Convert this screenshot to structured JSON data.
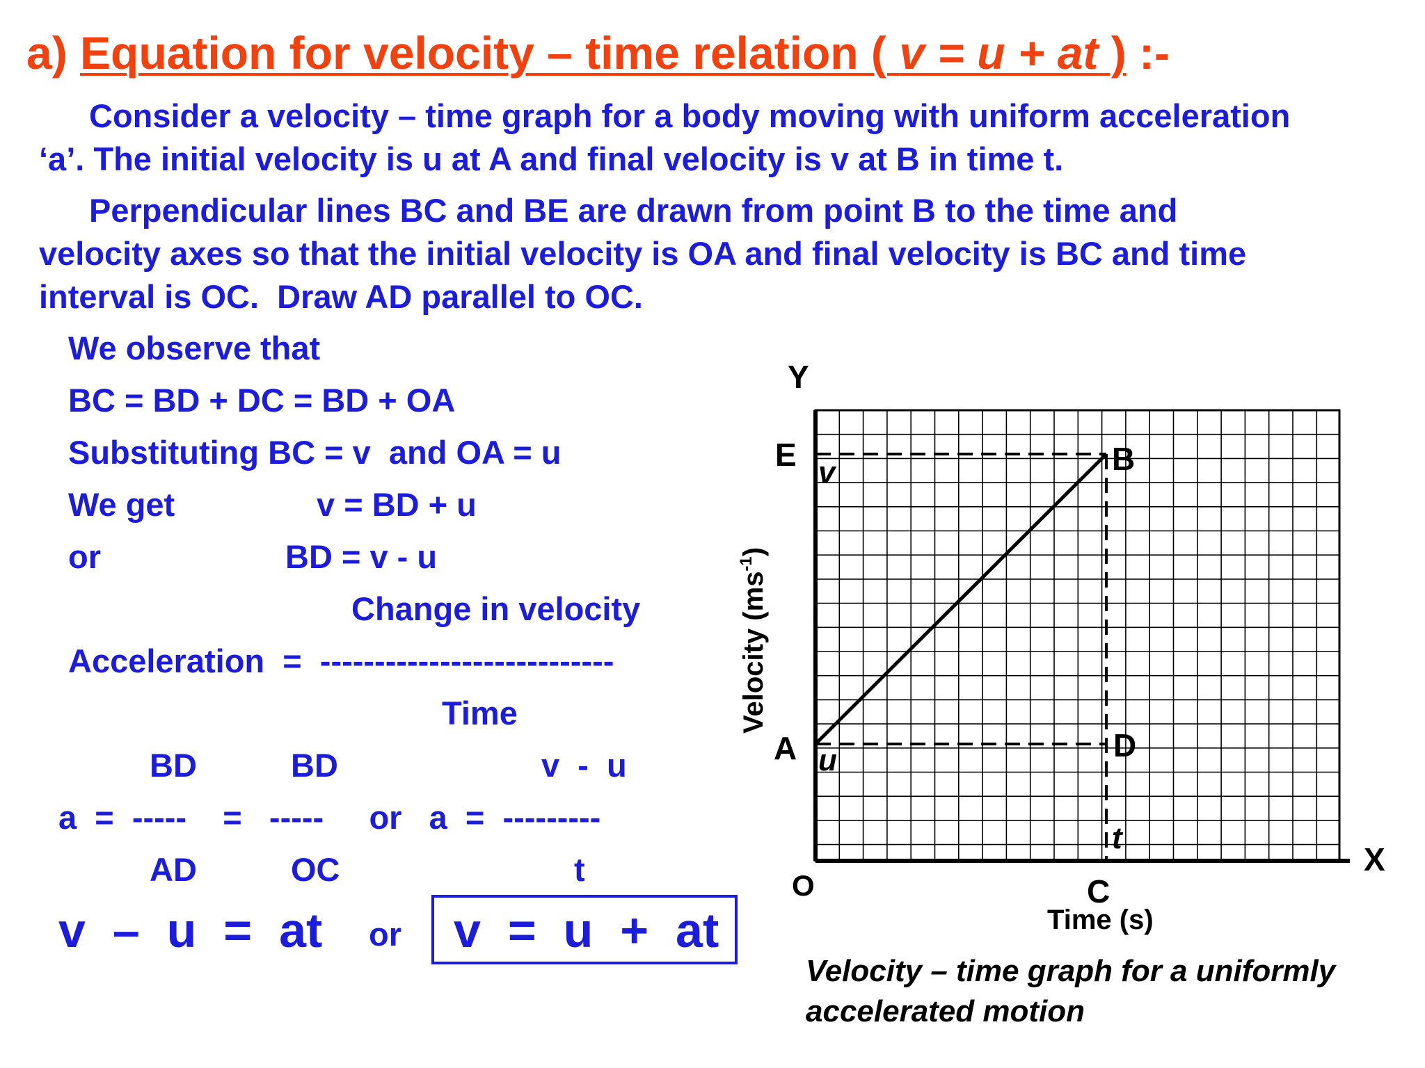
{
  "title": {
    "prefix": "a) ",
    "underlined_start": "Equation for velocity – time relation ( ",
    "underlined_formula": "v = u + at",
    "underlined_end": " )",
    "suffix": " :-"
  },
  "paragraphs": {
    "p1_line1": "Consider a velocity – time graph for a body moving with uniform acceleration",
    "p1_line2": "‘a’. The initial velocity is u at A and final velocity is v at B in time t.",
    "p2_line1": "Perpendicular lines BC and BE are drawn from point B to the time and",
    "p2_line2": "velocity axes so that the initial velocity is OA and final velocity is BC and time",
    "p2_line3": "interval is OC.  Draw AD parallel to OC."
  },
  "derivation": {
    "observe": "We observe that",
    "line_bc": "BC = BD + DC = BD + OA",
    "substituting": "Substituting BC = v  and OA = u",
    "we_get": "We get",
    "v_eq": "v = BD + u",
    "or_word": "or",
    "bd_eq": "BD = v - u",
    "change_in_velocity": "Change in velocity",
    "acceleration_label": "Acceleration  =  ---------------------------",
    "time_word": "Time",
    "frac_num1": "BD",
    "frac_num2": "BD",
    "frac_num3": "v  -  u",
    "frac_line": "a  =  -----    =   -----     or   a  =  ---------",
    "frac_den1": "AD",
    "frac_den2": "OC",
    "frac_den3": "t",
    "final_left": "v  –  u  =  at",
    "final_or": "or",
    "final_boxed": "v  =  u  +  at"
  },
  "graph": {
    "y_axis_letter": "Y",
    "x_axis_letter": "X",
    "origin": "O",
    "point_a": "A",
    "point_b": "B",
    "point_c": "C",
    "point_d": "D",
    "point_e": "E",
    "label_v": "v",
    "label_u": "u",
    "label_t": "t",
    "y_axis_title": "Velocity (ms",
    "y_axis_title_sup": "-1",
    "y_axis_title_end": ")",
    "x_axis_title": "Time (s)"
  },
  "caption": {
    "line1": "Velocity – time graph for a uniformly",
    "line2": "accelerated motion"
  },
  "colors": {
    "title": "#f0410f",
    "text": "#1c1cdc",
    "graph": "#000000"
  }
}
